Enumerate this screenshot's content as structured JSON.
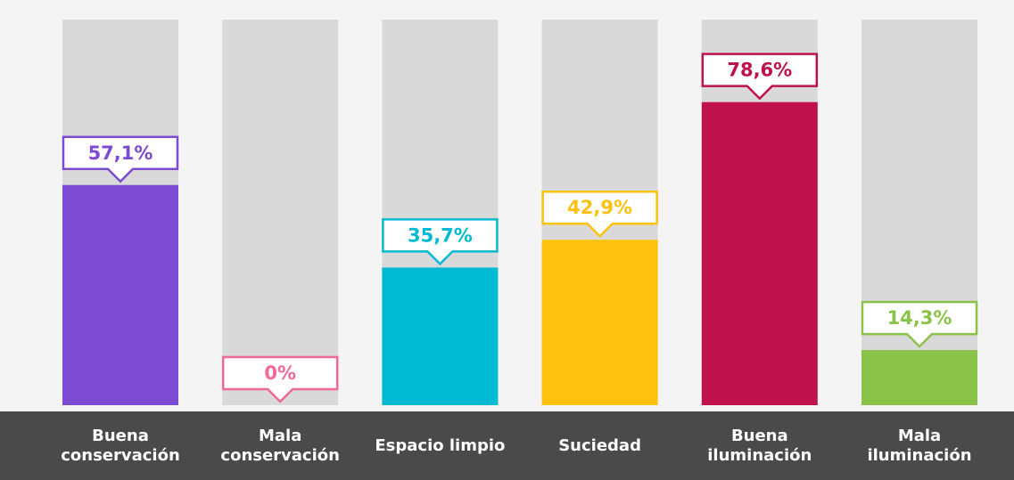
{
  "chart_data": {
    "type": "bar",
    "categories": [
      "Buena conservación",
      "Mala conservación",
      "Espacio limpio",
      "Suciedad",
      "Buena iluminación",
      "Mala iluminación"
    ],
    "values": [
      57.1,
      0,
      35.7,
      42.9,
      78.6,
      14.3
    ],
    "value_labels": [
      "57,1%",
      "0%",
      "35,7%",
      "42,9%",
      "78,6%",
      "14,3%"
    ],
    "colors": [
      "#7b4cd3",
      "#f0679a",
      "#00b9d3",
      "#fdc10e",
      "#bf124c",
      "#8bc34a"
    ],
    "ylim": [
      0,
      100
    ]
  }
}
